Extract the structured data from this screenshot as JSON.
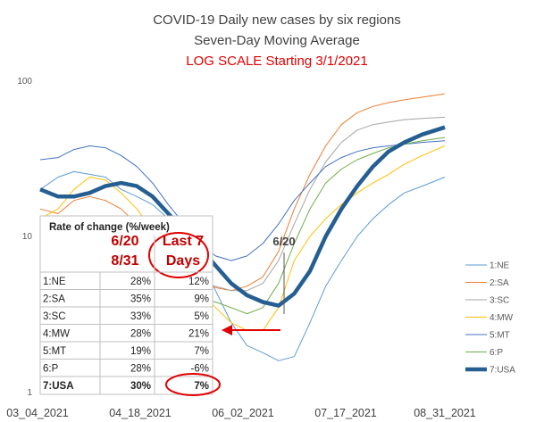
{
  "chart_data": {
    "type": "line",
    "title": "COVID-19 Daily new cases by six regions",
    "subtitle": "Seven-Day Moving Average",
    "subtitle2": "LOG SCALE Starting 3/1/2021",
    "y_scale": "log",
    "ylim": [
      1,
      100
    ],
    "y_ticks": [
      "100",
      "10",
      "1"
    ],
    "x_ticks": [
      "03_04_2021",
      "04_18_2021",
      "06_02_2021",
      "07_17_2021",
      "08_31_2021"
    ],
    "x_range": [
      "2021-03-04",
      "2021-08-31"
    ],
    "legend_position": "right",
    "grid": false,
    "annotation": "6/20",
    "series": [
      {
        "name": "1:NE",
        "color": "#5b9bd5",
        "width": 1,
        "values": [
          [
            0,
            20
          ],
          [
            8,
            24
          ],
          [
            15,
            26
          ],
          [
            22,
            25
          ],
          [
            29,
            24
          ],
          [
            36,
            20
          ],
          [
            43,
            18
          ],
          [
            50,
            16
          ],
          [
            57,
            13
          ],
          [
            64,
            10
          ],
          [
            71,
            7
          ],
          [
            78,
            4.5
          ],
          [
            85,
            2.8
          ],
          [
            92,
            2.0
          ],
          [
            99,
            1.8
          ],
          [
            106,
            1.6
          ],
          [
            113,
            1.7
          ],
          [
            120,
            2.8
          ],
          [
            127,
            4.8
          ],
          [
            134,
            7
          ],
          [
            141,
            10
          ],
          [
            148,
            13
          ],
          [
            155,
            16
          ],
          [
            162,
            19
          ],
          [
            170,
            21
          ],
          [
            180,
            24
          ]
        ]
      },
      {
        "name": "2:SA",
        "color": "#ed7d31",
        "width": 1,
        "values": [
          [
            0,
            15
          ],
          [
            8,
            14
          ],
          [
            15,
            17
          ],
          [
            22,
            18
          ],
          [
            29,
            17
          ],
          [
            36,
            15
          ],
          [
            43,
            12
          ],
          [
            50,
            9
          ],
          [
            57,
            7
          ],
          [
            64,
            6
          ],
          [
            71,
            5
          ],
          [
            78,
            4.7
          ],
          [
            85,
            4.5
          ],
          [
            92,
            4.8
          ],
          [
            99,
            5.5
          ],
          [
            106,
            8
          ],
          [
            113,
            15
          ],
          [
            120,
            25
          ],
          [
            127,
            38
          ],
          [
            134,
            52
          ],
          [
            141,
            62
          ],
          [
            148,
            68
          ],
          [
            155,
            72
          ],
          [
            162,
            75
          ],
          [
            170,
            78
          ],
          [
            180,
            82
          ]
        ]
      },
      {
        "name": "3:SC",
        "color": "#a5a5a5",
        "width": 1,
        "values": [
          [
            0,
            11
          ],
          [
            8,
            11
          ],
          [
            15,
            12
          ],
          [
            22,
            13
          ],
          [
            29,
            12
          ],
          [
            36,
            11
          ],
          [
            43,
            10
          ],
          [
            50,
            8
          ],
          [
            57,
            6.5
          ],
          [
            64,
            5.5
          ],
          [
            71,
            5
          ],
          [
            78,
            4.8
          ],
          [
            85,
            4.5
          ],
          [
            92,
            4.5
          ],
          [
            99,
            5
          ],
          [
            106,
            7
          ],
          [
            113,
            12
          ],
          [
            120,
            20
          ],
          [
            127,
            30
          ],
          [
            134,
            40
          ],
          [
            141,
            48
          ],
          [
            148,
            52
          ],
          [
            155,
            54
          ],
          [
            162,
            56
          ],
          [
            170,
            57
          ],
          [
            180,
            58
          ]
        ]
      },
      {
        "name": "4:MW",
        "color": "#ffc000",
        "width": 1,
        "values": [
          [
            0,
            13
          ],
          [
            8,
            15
          ],
          [
            15,
            20
          ],
          [
            22,
            24
          ],
          [
            29,
            23
          ],
          [
            36,
            19
          ],
          [
            43,
            15
          ],
          [
            50,
            11
          ],
          [
            57,
            8
          ],
          [
            64,
            6
          ],
          [
            71,
            4.5
          ],
          [
            78,
            3.5
          ],
          [
            85,
            2.8
          ],
          [
            92,
            2.5
          ],
          [
            99,
            2.5
          ],
          [
            106,
            3.5
          ],
          [
            113,
            7
          ],
          [
            120,
            10
          ],
          [
            127,
            13
          ],
          [
            134,
            16
          ],
          [
            141,
            19
          ],
          [
            148,
            22
          ],
          [
            155,
            25
          ],
          [
            162,
            29
          ],
          [
            170,
            33
          ],
          [
            180,
            38
          ]
        ]
      },
      {
        "name": "5:MT",
        "color": "#4472c4",
        "width": 1,
        "values": [
          [
            0,
            31
          ],
          [
            8,
            32
          ],
          [
            15,
            36
          ],
          [
            22,
            38
          ],
          [
            29,
            37
          ],
          [
            36,
            33
          ],
          [
            43,
            28
          ],
          [
            50,
            22
          ],
          [
            57,
            16
          ],
          [
            64,
            12
          ],
          [
            71,
            9
          ],
          [
            78,
            7.5
          ],
          [
            85,
            7
          ],
          [
            92,
            7.5
          ],
          [
            99,
            9
          ],
          [
            106,
            12
          ],
          [
            113,
            17
          ],
          [
            120,
            22
          ],
          [
            127,
            28
          ],
          [
            134,
            32
          ],
          [
            141,
            35
          ],
          [
            148,
            37
          ],
          [
            155,
            38
          ],
          [
            162,
            39
          ],
          [
            170,
            40
          ],
          [
            180,
            41
          ]
        ]
      },
      {
        "name": "6:P",
        "color": "#70ad47",
        "width": 1,
        "values": [
          [
            0,
            7.5
          ],
          [
            8,
            7
          ],
          [
            15,
            6.5
          ],
          [
            22,
            6.3
          ],
          [
            29,
            6.5
          ],
          [
            36,
            6.2
          ],
          [
            43,
            5.8
          ],
          [
            50,
            5
          ],
          [
            57,
            4.5
          ],
          [
            64,
            4.2
          ],
          [
            71,
            4
          ],
          [
            78,
            3.8
          ],
          [
            85,
            3.5
          ],
          [
            92,
            3.2
          ],
          [
            99,
            3.5
          ],
          [
            106,
            5
          ],
          [
            113,
            9
          ],
          [
            120,
            15
          ],
          [
            127,
            22
          ],
          [
            134,
            27
          ],
          [
            141,
            31
          ],
          [
            148,
            34
          ],
          [
            155,
            37
          ],
          [
            162,
            39
          ],
          [
            170,
            41
          ],
          [
            180,
            43
          ]
        ]
      },
      {
        "name": "7:USA",
        "color": "#255e91",
        "width": 4.5,
        "values": [
          [
            0,
            20
          ],
          [
            8,
            18
          ],
          [
            15,
            18
          ],
          [
            22,
            19
          ],
          [
            29,
            21
          ],
          [
            36,
            22
          ],
          [
            43,
            21
          ],
          [
            50,
            18
          ],
          [
            57,
            14
          ],
          [
            64,
            11
          ],
          [
            71,
            8.5
          ],
          [
            78,
            6.5
          ],
          [
            85,
            5
          ],
          [
            92,
            4.2
          ],
          [
            99,
            3.8
          ],
          [
            106,
            3.6
          ],
          [
            113,
            4.3
          ],
          [
            120,
            6
          ],
          [
            127,
            10
          ],
          [
            134,
            15
          ],
          [
            141,
            21
          ],
          [
            148,
            28
          ],
          [
            155,
            35
          ],
          [
            162,
            40
          ],
          [
            170,
            45
          ],
          [
            180,
            50
          ]
        ]
      }
    ],
    "table": {
      "title": "Rate of change (%/week)",
      "col1_header_line1": "6/20",
      "col1_header_line2": "8/31",
      "col2_header_line1": "Last 7",
      "col2_header_line2": "Days",
      "rows": [
        {
          "label": "1:NE",
          "c1": "28%",
          "c2": "12%"
        },
        {
          "label": "2:SA",
          "c1": "35%",
          "c2": "9%"
        },
        {
          "label": "3:SC",
          "c1": "33%",
          "c2": "5%"
        },
        {
          "label": "4:MW",
          "c1": "28%",
          "c2": "21%"
        },
        {
          "label": "5:MT",
          "c1": "19%",
          "c2": "7%"
        },
        {
          "label": "6:P",
          "c1": "28%",
          "c2": "-6%"
        },
        {
          "label": "7:USA",
          "c1": "30%",
          "c2": "7%"
        }
      ]
    }
  }
}
